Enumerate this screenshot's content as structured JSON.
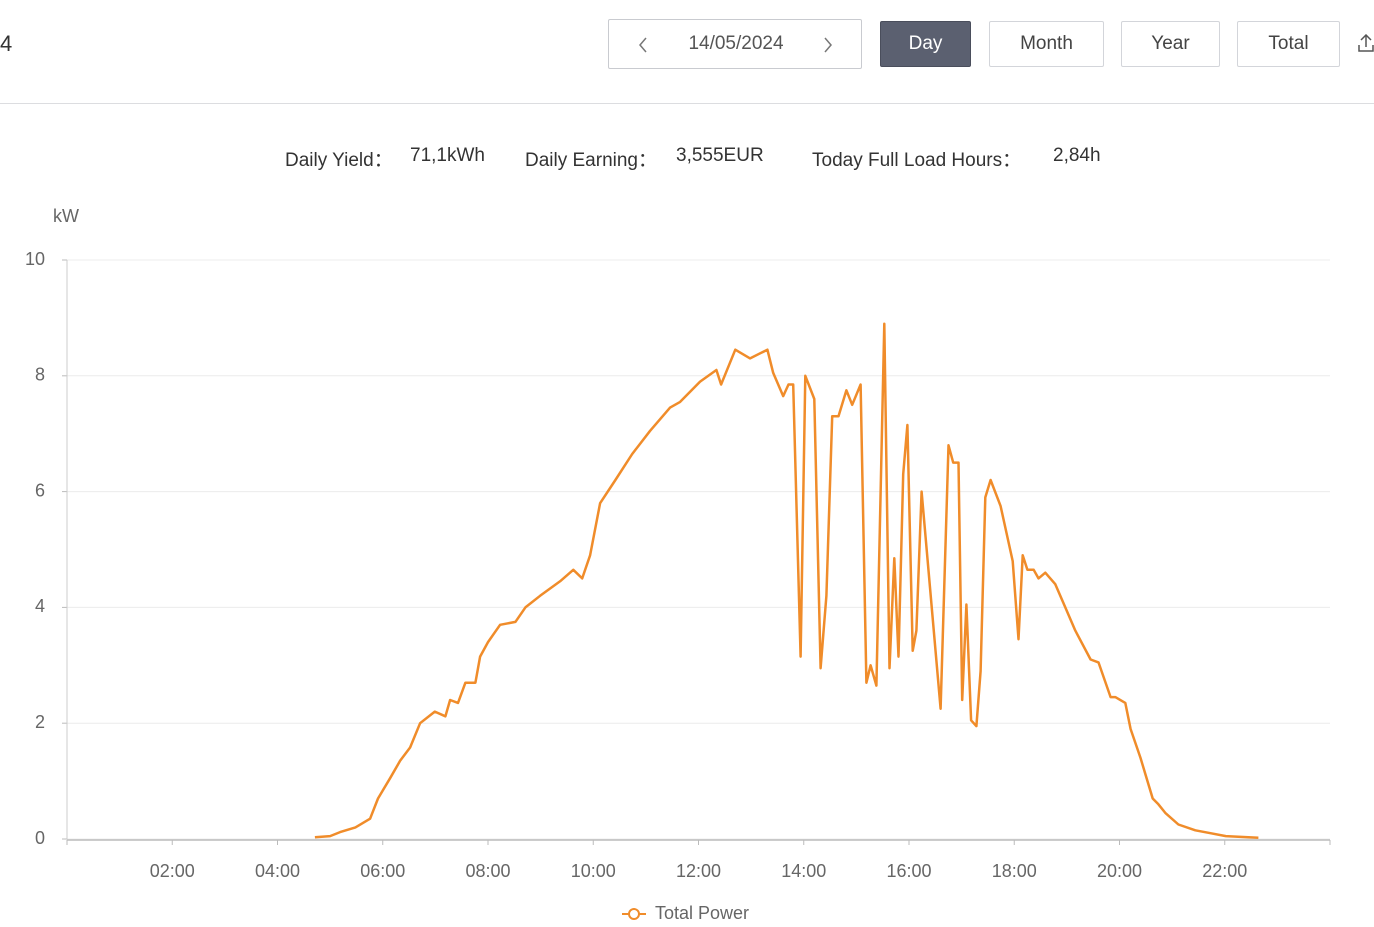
{
  "header": {
    "cut_title": "4",
    "date": "14/05/2024",
    "buttons": [
      "Day",
      "Month",
      "Year",
      "Total"
    ]
  },
  "summary": [
    {
      "label": "Daily Yield：",
      "value": "71,1kWh"
    },
    {
      "label": "Daily Earning：",
      "value": "3,555EUR"
    },
    {
      "label": "Today Full Load Hours：",
      "value": "2,84h"
    }
  ],
  "chart_data": {
    "type": "line",
    "y_label": "kW",
    "xlim": [
      0,
      24
    ],
    "xticks": [
      {
        "value": 2,
        "label": "02:00"
      },
      {
        "value": 4,
        "label": "04:00"
      },
      {
        "value": 6,
        "label": "06:00"
      },
      {
        "value": 8,
        "label": "08:00"
      },
      {
        "value": 10,
        "label": "10:00"
      },
      {
        "value": 12,
        "label": "12:00"
      },
      {
        "value": 14,
        "label": "14:00"
      },
      {
        "value": 16,
        "label": "16:00"
      },
      {
        "value": 18,
        "label": "18:00"
      },
      {
        "value": 20,
        "label": "20:00"
      },
      {
        "value": 22,
        "label": "22:00"
      }
    ],
    "ylim": [
      0,
      10
    ],
    "yticks": [
      0,
      2,
      4,
      6,
      8,
      10
    ],
    "grid": true,
    "legend": "bottom",
    "x": [
      4.71,
      5.0,
      5.19,
      5.48,
      5.76,
      5.91,
      6.14,
      6.33,
      6.52,
      6.71,
      6.99,
      7.19,
      7.28,
      7.43,
      7.57,
      7.76,
      7.85,
      8.0,
      8.23,
      8.52,
      8.71,
      8.99,
      9.37,
      9.62,
      9.79,
      9.94,
      10.13,
      10.42,
      10.74,
      11.08,
      11.46,
      11.65,
      12.03,
      12.34,
      12.43,
      12.7,
      12.98,
      13.31,
      13.42,
      13.61,
      13.71,
      13.8,
      13.94,
      14.03,
      14.2,
      14.32,
      14.43,
      14.54,
      14.66,
      14.81,
      14.92,
      15.08,
      15.19,
      15.27,
      15.38,
      15.53,
      15.63,
      15.72,
      15.8,
      15.89,
      15.97,
      16.07,
      16.14,
      16.24,
      16.6,
      16.75,
      16.84,
      16.94,
      17.01,
      17.09,
      17.18,
      17.28,
      17.36,
      17.45,
      17.55,
      17.74,
      17.97,
      18.08,
      18.16,
      18.25,
      18.37,
      18.46,
      18.59,
      18.78,
      18.97,
      19.16,
      19.45,
      19.6,
      19.83,
      19.92,
      20.11,
      20.21,
      20.4,
      20.63,
      20.74,
      20.87,
      21.12,
      21.44,
      21.73,
      22.02,
      22.64
    ],
    "series": [
      {
        "name": "Total Power",
        "color": "#f08c2a",
        "values": [
          0.03,
          0.05,
          0.12,
          0.2,
          0.35,
          0.7,
          1.05,
          1.35,
          1.58,
          2.0,
          2.2,
          2.12,
          2.4,
          2.35,
          2.7,
          2.7,
          3.15,
          3.4,
          3.7,
          3.75,
          4.0,
          4.2,
          4.45,
          4.65,
          4.5,
          4.9,
          5.8,
          6.2,
          6.65,
          7.05,
          7.45,
          7.55,
          7.9,
          8.1,
          7.85,
          8.45,
          8.3,
          8.45,
          8.05,
          7.65,
          7.85,
          7.85,
          3.15,
          8.0,
          7.6,
          2.95,
          4.2,
          7.3,
          7.3,
          7.75,
          7.5,
          7.85,
          2.7,
          3.0,
          2.65,
          8.9,
          2.95,
          4.85,
          3.15,
          6.3,
          7.15,
          3.25,
          3.6,
          6.0,
          2.25,
          6.8,
          6.5,
          6.5,
          2.4,
          4.05,
          2.05,
          1.95,
          2.9,
          5.9,
          6.2,
          5.75,
          4.8,
          3.45,
          4.9,
          4.65,
          4.65,
          4.5,
          4.6,
          4.4,
          4.0,
          3.6,
          3.1,
          3.05,
          2.45,
          2.45,
          2.35,
          1.9,
          1.4,
          0.7,
          0.6,
          0.45,
          0.25,
          0.15,
          0.1,
          0.05,
          0.02
        ]
      }
    ]
  }
}
